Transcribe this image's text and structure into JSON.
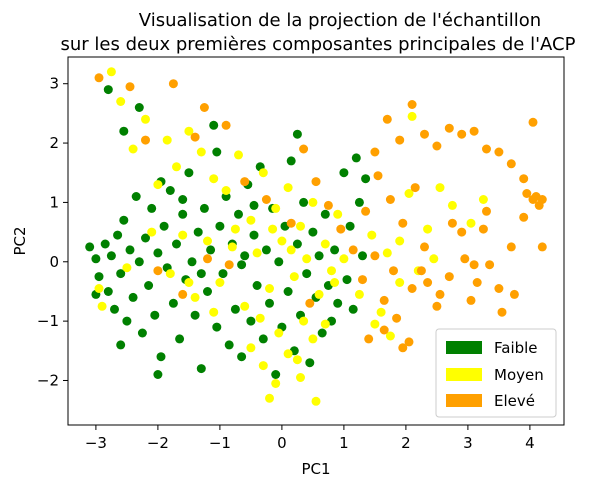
{
  "chart_data": {
    "type": "scatter",
    "title_lines": [
      "Visualisation de la projection de l'échantillon",
      "sur les deux premières composantes principales de l'ACP"
    ],
    "xlabel": "PC1",
    "ylabel": "PC2",
    "xlim": [
      -3.45,
      4.55
    ],
    "ylim": [
      -2.75,
      3.45
    ],
    "xticks": [
      -3,
      -2,
      -1,
      0,
      1,
      2,
      3,
      4
    ],
    "yticks": [
      -2,
      -1,
      0,
      1,
      2,
      3
    ],
    "xtick_labels": [
      "−3",
      "−2",
      "−1",
      "0",
      "1",
      "2",
      "3",
      "4"
    ],
    "ytick_labels": [
      "−2",
      "−1",
      "0",
      "1",
      "2",
      "3"
    ],
    "grid": false,
    "legend_position": "lower-right",
    "series": [
      {
        "name": "Faible",
        "color": "#008000",
        "points": [
          [
            -3.1,
            0.25
          ],
          [
            -3.0,
            0.05
          ],
          [
            -2.95,
            -0.25
          ],
          [
            -2.85,
            0.3
          ],
          [
            -2.8,
            -0.5
          ],
          [
            -2.75,
            0.1
          ],
          [
            -2.7,
            -0.8
          ],
          [
            -2.65,
            0.45
          ],
          [
            -2.6,
            -0.2
          ],
          [
            -2.55,
            0.7
          ],
          [
            -2.5,
            -1.0
          ],
          [
            -2.45,
            0.2
          ],
          [
            -2.4,
            -0.6
          ],
          [
            -2.35,
            1.1
          ],
          [
            -2.3,
            0.0
          ],
          [
            -2.25,
            -1.2
          ],
          [
            -2.2,
            0.4
          ],
          [
            -2.15,
            -0.4
          ],
          [
            -2.1,
            0.9
          ],
          [
            -2.05,
            -0.9
          ],
          [
            -2.0,
            0.15
          ],
          [
            -1.95,
            -1.6
          ],
          [
            -1.9,
            0.6
          ],
          [
            -1.85,
            -0.1
          ],
          [
            -1.8,
            1.2
          ],
          [
            -1.75,
            -0.7
          ],
          [
            -1.7,
            0.3
          ],
          [
            -1.65,
            -1.3
          ],
          [
            -1.6,
            0.8
          ],
          [
            -1.55,
            -0.3
          ],
          [
            -1.5,
            1.5
          ],
          [
            -1.45,
            0.0
          ],
          [
            -1.4,
            -0.9
          ],
          [
            -1.35,
            0.5
          ],
          [
            -1.3,
            -1.8
          ],
          [
            -1.25,
            0.9
          ],
          [
            -1.2,
            -0.5
          ],
          [
            -1.15,
            0.2
          ],
          [
            -1.1,
            2.3
          ],
          [
            -1.05,
            -1.1
          ],
          [
            -1.0,
            0.6
          ],
          [
            -0.95,
            -0.2
          ],
          [
            -0.9,
            1.1
          ],
          [
            -0.85,
            -1.4
          ],
          [
            -0.8,
            0.3
          ],
          [
            -0.75,
            -0.8
          ],
          [
            -0.7,
            0.8
          ],
          [
            -0.65,
            -1.6
          ],
          [
            -0.6,
            0.1
          ],
          [
            -0.55,
            1.3
          ],
          [
            -0.5,
            -1.0
          ],
          [
            -0.45,
            0.45
          ],
          [
            -0.4,
            -0.4
          ],
          [
            -0.35,
            1.6
          ],
          [
            -0.3,
            -1.3
          ],
          [
            -0.25,
            0.2
          ],
          [
            -0.2,
            -0.7
          ],
          [
            -0.15,
            0.9
          ],
          [
            -0.1,
            -1.9
          ],
          [
            -0.05,
            0.0
          ],
          [
            0.0,
            -1.1
          ],
          [
            0.05,
            0.6
          ],
          [
            0.1,
            -0.5
          ],
          [
            0.15,
            1.7
          ],
          [
            0.2,
            -1.5
          ],
          [
            0.25,
            0.3
          ],
          [
            0.3,
            -0.9
          ],
          [
            0.35,
            1.0
          ],
          [
            0.4,
            -0.2
          ],
          [
            0.45,
            -1.7
          ],
          [
            0.5,
            0.5
          ],
          [
            0.55,
            -0.6
          ],
          [
            0.6,
            0.1
          ],
          [
            0.65,
            -1.2
          ],
          [
            0.7,
            0.8
          ],
          [
            0.75,
            -0.4
          ],
          [
            0.8,
            -1.0
          ],
          [
            0.85,
            0.2
          ],
          [
            0.9,
            -0.7
          ],
          [
            1.0,
            1.5
          ],
          [
            1.05,
            -0.3
          ],
          [
            1.1,
            0.6
          ],
          [
            1.15,
            -0.8
          ],
          [
            1.25,
            1.0
          ],
          [
            1.3,
            0.1
          ],
          [
            -2.8,
            2.9
          ],
          [
            -2.55,
            2.2
          ],
          [
            -2.3,
            2.6
          ],
          [
            -1.95,
            1.35
          ],
          [
            -1.6,
            1.05
          ],
          [
            -1.05,
            1.85
          ],
          [
            -0.45,
            0.95
          ],
          [
            0.25,
            2.15
          ],
          [
            1.2,
            1.75
          ],
          [
            1.35,
            1.4
          ],
          [
            -3.0,
            -0.55
          ],
          [
            -2.6,
            -1.4
          ],
          [
            -2.0,
            -1.9
          ],
          [
            -1.3,
            -0.2
          ],
          [
            -0.65,
            -0.05
          ]
        ]
      },
      {
        "name": "Moyen",
        "color": "#ffff00",
        "points": [
          [
            -2.75,
            3.2
          ],
          [
            -2.6,
            2.7
          ],
          [
            -2.4,
            1.9
          ],
          [
            -2.2,
            2.4
          ],
          [
            -2.0,
            1.3
          ],
          [
            -1.85,
            2.05
          ],
          [
            -1.7,
            1.6
          ],
          [
            -1.5,
            2.2
          ],
          [
            -1.3,
            1.85
          ],
          [
            -1.1,
            1.4
          ],
          [
            -0.9,
            1.2
          ],
          [
            -0.7,
            1.8
          ],
          [
            -0.5,
            0.7
          ],
          [
            -0.3,
            1.5
          ],
          [
            -0.1,
            0.9
          ],
          [
            0.1,
            1.25
          ],
          [
            0.3,
            0.6
          ],
          [
            0.5,
            1.0
          ],
          [
            0.7,
            0.3
          ],
          [
            0.9,
            0.8
          ],
          [
            -2.95,
            -0.45
          ],
          [
            -2.5,
            -0.1
          ],
          [
            -2.1,
            0.5
          ],
          [
            -1.8,
            -0.2
          ],
          [
            -1.6,
            0.45
          ],
          [
            -1.4,
            -0.6
          ],
          [
            -1.2,
            0.35
          ],
          [
            -1.0,
            -0.35
          ],
          [
            -0.8,
            0.25
          ],
          [
            -0.6,
            -0.75
          ],
          [
            -0.4,
            0.15
          ],
          [
            -0.2,
            -0.45
          ],
          [
            0.0,
            0.35
          ],
          [
            0.2,
            -0.25
          ],
          [
            0.4,
            0.05
          ],
          [
            0.6,
            -0.55
          ],
          [
            0.8,
            -0.15
          ],
          [
            1.0,
            0.05
          ],
          [
            -0.5,
            -1.45
          ],
          [
            -0.3,
            -1.75
          ],
          [
            -0.1,
            -2.05
          ],
          [
            0.1,
            -1.55
          ],
          [
            0.3,
            -1.95
          ],
          [
            0.5,
            -1.3
          ],
          [
            0.7,
            -1.05
          ],
          [
            -0.2,
            -2.3
          ],
          [
            0.55,
            -2.35
          ],
          [
            0.25,
            -1.65
          ],
          [
            -0.05,
            -1.2
          ],
          [
            -0.35,
            -0.95
          ],
          [
            1.6,
            -0.85
          ],
          [
            1.75,
            -1.25
          ],
          [
            1.9,
            0.35
          ],
          [
            2.05,
            1.15
          ],
          [
            2.2,
            -0.15
          ],
          [
            2.35,
            0.55
          ],
          [
            2.55,
            1.25
          ],
          [
            2.75,
            0.95
          ],
          [
            3.05,
            0.65
          ],
          [
            3.25,
            1.05
          ],
          [
            1.5,
            -1.05
          ],
          [
            1.7,
            0.15
          ],
          [
            1.9,
            -0.35
          ],
          [
            2.1,
            2.45
          ],
          [
            2.45,
            0.05
          ],
          [
            -2.9,
            -0.75
          ],
          [
            -1.5,
            -0.35
          ],
          [
            -0.75,
            0.55
          ],
          [
            0.15,
            0.2
          ],
          [
            0.35,
            -1.0
          ],
          [
            -1.1,
            -0.85
          ],
          [
            -0.15,
            0.55
          ],
          [
            0.85,
            -0.35
          ],
          [
            1.25,
            -0.55
          ],
          [
            1.45,
            0.45
          ]
        ]
      },
      {
        "name": "Elevé",
        "color": "#ffa000",
        "points": [
          [
            -2.95,
            3.1
          ],
          [
            -2.45,
            2.95
          ],
          [
            -2.2,
            2.05
          ],
          [
            -1.75,
            3.0
          ],
          [
            -1.4,
            2.1
          ],
          [
            -1.25,
            2.6
          ],
          [
            -0.9,
            2.3
          ],
          [
            -0.6,
            1.35
          ],
          [
            -0.25,
            1.05
          ],
          [
            0.15,
            0.65
          ],
          [
            0.35,
            1.9
          ],
          [
            0.55,
            1.35
          ],
          [
            0.75,
            0.95
          ],
          [
            0.95,
            0.55
          ],
          [
            1.15,
            0.2
          ],
          [
            1.35,
            0.85
          ],
          [
            1.55,
            1.45
          ],
          [
            1.75,
            1.05
          ],
          [
            1.95,
            0.65
          ],
          [
            2.15,
            1.25
          ],
          [
            1.3,
            -0.3
          ],
          [
            1.5,
            0.1
          ],
          [
            1.65,
            -0.65
          ],
          [
            1.8,
            -0.15
          ],
          [
            1.95,
            -1.45
          ],
          [
            2.1,
            -0.45
          ],
          [
            2.3,
            0.25
          ],
          [
            2.5,
            -0.75
          ],
          [
            2.7,
            -0.25
          ],
          [
            2.9,
            0.5
          ],
          [
            3.1,
            -0.05
          ],
          [
            3.3,
            0.85
          ],
          [
            3.5,
            -0.45
          ],
          [
            3.7,
            0.25
          ],
          [
            3.9,
            0.75
          ],
          [
            4.05,
            1.05
          ],
          [
            4.15,
            0.95
          ],
          [
            4.2,
            1.05
          ],
          [
            4.1,
            1.1
          ],
          [
            3.95,
            1.15
          ],
          [
            1.5,
            1.85
          ],
          [
            1.7,
            2.4
          ],
          [
            1.9,
            2.05
          ],
          [
            2.1,
            2.65
          ],
          [
            2.3,
            2.15
          ],
          [
            2.5,
            1.95
          ],
          [
            2.7,
            2.25
          ],
          [
            2.9,
            2.15
          ],
          [
            3.1,
            2.2
          ],
          [
            3.3,
            1.9
          ],
          [
            3.5,
            1.85
          ],
          [
            3.7,
            1.65
          ],
          [
            3.9,
            1.4
          ],
          [
            4.05,
            2.35
          ],
          [
            4.2,
            0.25
          ],
          [
            3.35,
            -0.05
          ],
          [
            3.55,
            -0.85
          ],
          [
            3.75,
            -0.55
          ],
          [
            3.25,
            0.55
          ],
          [
            3.15,
            -0.35
          ],
          [
            2.35,
            -0.35
          ],
          [
            2.55,
            -0.55
          ],
          [
            2.75,
            0.65
          ],
          [
            2.95,
            0.05
          ],
          [
            3.05,
            -0.65
          ],
          [
            1.4,
            -1.3
          ],
          [
            1.65,
            -1.15
          ],
          [
            1.85,
            -0.95
          ],
          [
            2.05,
            -1.35
          ],
          [
            2.25,
            -0.15
          ],
          [
            -2.0,
            -0.15
          ],
          [
            -1.6,
            -0.55
          ],
          [
            -1.2,
            0.05
          ],
          [
            -0.85,
            -0.05
          ],
          [
            0.45,
            -0.7
          ]
        ]
      }
    ]
  }
}
